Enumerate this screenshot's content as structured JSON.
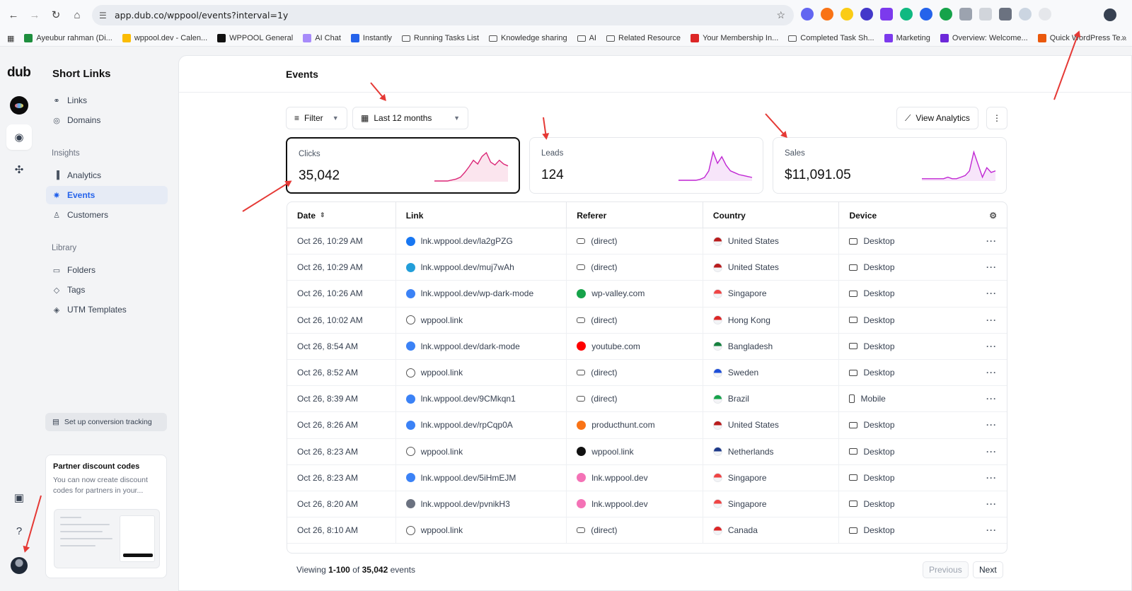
{
  "browser": {
    "url": "app.dub.co/wppool/events?interval=1y",
    "bookmarks": [
      {
        "label": "Ayeubur rahman (Di...",
        "kind": "icon",
        "color": "#1e8e3e"
      },
      {
        "label": "wppool.dev - Calen...",
        "kind": "icon",
        "color": "#fbbc04"
      },
      {
        "label": "WPPOOL General",
        "kind": "icon",
        "color": "#111111"
      },
      {
        "label": "AI Chat",
        "kind": "icon",
        "color": "#a78bfa"
      },
      {
        "label": "Instantly",
        "kind": "icon",
        "color": "#2563eb"
      },
      {
        "label": "Running Tasks List",
        "kind": "folder"
      },
      {
        "label": "Knowledge sharing",
        "kind": "folder"
      },
      {
        "label": "AI",
        "kind": "folder"
      },
      {
        "label": "Related Resource",
        "kind": "folder"
      },
      {
        "label": "Your Membership In...",
        "kind": "icon",
        "color": "#dc2626"
      },
      {
        "label": "Completed Task Sh...",
        "kind": "folder"
      },
      {
        "label": "Marketing",
        "kind": "icon",
        "color": "#7c3aed"
      },
      {
        "label": "Overview: Welcome...",
        "kind": "icon",
        "color": "#6d28d9"
      },
      {
        "label": "Quick WordPress Te...",
        "kind": "icon",
        "color": "#ea580c"
      }
    ]
  },
  "rail": {
    "logo": "dub"
  },
  "sidebar": {
    "title": "Short Links",
    "items_top": [
      {
        "label": "Links",
        "icon": "link-icon",
        "glyph": "⚭"
      },
      {
        "label": "Domains",
        "icon": "globe-icon",
        "glyph": "◎"
      }
    ],
    "insights_label": "Insights",
    "items_insights": [
      {
        "label": "Analytics",
        "icon": "chart-bar-icon",
        "glyph": "▐"
      },
      {
        "label": "Events",
        "icon": "cursor-rays-icon",
        "glyph": "✷",
        "active": true
      },
      {
        "label": "Customers",
        "icon": "user-icon",
        "glyph": "♙"
      }
    ],
    "library_label": "Library",
    "items_library": [
      {
        "label": "Folders",
        "icon": "folder-icon",
        "glyph": "▭"
      },
      {
        "label": "Tags",
        "icon": "tag-icon",
        "glyph": "◇"
      },
      {
        "label": "UTM Templates",
        "icon": "diamond-icon",
        "glyph": "◈"
      }
    ],
    "setup": "Set up conversion tracking",
    "partner": {
      "heading": "Partner discount codes",
      "text": "You can now create discount codes for partners in your..."
    }
  },
  "main": {
    "title": "Events",
    "filter_label": "Filter",
    "range_label": "Last 12 months",
    "view_analytics_label": "View Analytics",
    "more_glyph": "⋮"
  },
  "metrics": [
    {
      "label": "Clicks",
      "value": "35,042",
      "selected": true,
      "color": "#db2777"
    },
    {
      "label": "Leads",
      "value": "124",
      "selected": false,
      "color": "#c026d3"
    },
    {
      "label": "Sales",
      "value": "$11,091.05",
      "selected": false,
      "color": "#c026d3"
    }
  ],
  "table": {
    "headers": [
      "Date",
      "Link",
      "Referer",
      "Country",
      "Device"
    ],
    "rows": [
      {
        "date": "Oct 26, 10:29 AM",
        "link": "lnk.wppool.dev/la2gPZG",
        "link_icon": "#1877f2",
        "referer": "(direct)",
        "ref_icon": "link",
        "country": "United States",
        "flag": "#b91c1c",
        "device": "Desktop"
      },
      {
        "date": "Oct 26, 10:29 AM",
        "link": "lnk.wppool.dev/muj7wAh",
        "link_icon": "#229ed9",
        "referer": "(direct)",
        "ref_icon": "link",
        "country": "United States",
        "flag": "#b91c1c",
        "device": "Desktop"
      },
      {
        "date": "Oct 26, 10:26 AM",
        "link": "lnk.wppool.dev/wp-dark-mode",
        "link_icon": "#3b82f6",
        "referer": "wp-valley.com",
        "ref_icon": "#16a34a",
        "country": "Singapore",
        "flag": "#ef4444",
        "device": "Desktop"
      },
      {
        "date": "Oct 26, 10:02 AM",
        "link": "wppool.link",
        "link_icon": "globe",
        "referer": "(direct)",
        "ref_icon": "link",
        "country": "Hong Kong",
        "flag": "#dc2626",
        "device": "Desktop"
      },
      {
        "date": "Oct 26, 8:54 AM",
        "link": "lnk.wppool.dev/dark-mode",
        "link_icon": "#3b82f6",
        "referer": "youtube.com",
        "ref_icon": "#ff0000",
        "country": "Bangladesh",
        "flag": "#15803d",
        "device": "Desktop"
      },
      {
        "date": "Oct 26, 8:52 AM",
        "link": "wppool.link",
        "link_icon": "globe",
        "referer": "(direct)",
        "ref_icon": "link",
        "country": "Sweden",
        "flag": "#1d4ed8",
        "device": "Desktop"
      },
      {
        "date": "Oct 26, 8:39 AM",
        "link": "lnk.wppool.dev/9CMkqn1",
        "link_icon": "#3b82f6",
        "referer": "(direct)",
        "ref_icon": "link",
        "country": "Brazil",
        "flag": "#16a34a",
        "device": "Mobile"
      },
      {
        "date": "Oct 26, 8:26 AM",
        "link": "lnk.wppool.dev/rpCqp0A",
        "link_icon": "#3b82f6",
        "referer": "producthunt.com",
        "ref_icon": "#f97316",
        "country": "United States",
        "flag": "#b91c1c",
        "device": "Desktop"
      },
      {
        "date": "Oct 26, 8:23 AM",
        "link": "wppool.link",
        "link_icon": "globe",
        "referer": "wppool.link",
        "ref_icon": "#111111",
        "country": "Netherlands",
        "flag": "#1e3a8a",
        "device": "Desktop"
      },
      {
        "date": "Oct 26, 8:23 AM",
        "link": "lnk.wppool.dev/5iHmEJM",
        "link_icon": "#3b82f6",
        "referer": "lnk.wppool.dev",
        "ref_icon": "#f472b6",
        "country": "Singapore",
        "flag": "#ef4444",
        "device": "Desktop"
      },
      {
        "date": "Oct 26, 8:20 AM",
        "link": "lnk.wppool.dev/pvnikH3",
        "link_icon": "#6b7280",
        "referer": "lnk.wppool.dev",
        "ref_icon": "#f472b6",
        "country": "Singapore",
        "flag": "#ef4444",
        "device": "Desktop"
      },
      {
        "date": "Oct 26, 8:10 AM",
        "link": "wppool.link",
        "link_icon": "globe",
        "referer": "(direct)",
        "ref_icon": "link",
        "country": "Canada",
        "flag": "#dc2626",
        "device": "Desktop"
      }
    ],
    "footer": {
      "prefix": "Viewing",
      "range": "1-100",
      "of": "of",
      "total": "35,042",
      "suffix": "events"
    },
    "previous_label": "Previous",
    "next_label": "Next"
  }
}
